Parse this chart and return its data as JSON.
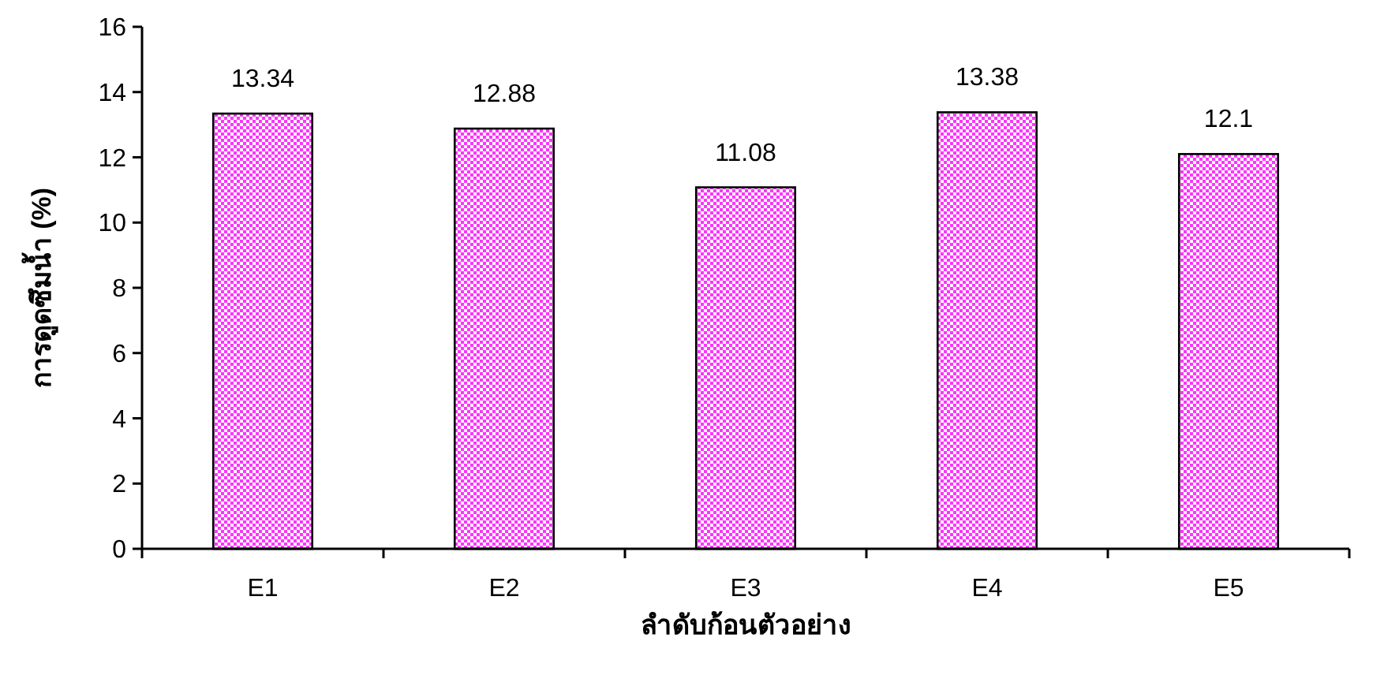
{
  "chart_data": {
    "type": "bar",
    "xlabel": "ลำดับก้อนตัวอย่าง",
    "ylabel": "การดูดซึมน้ำ (%)",
    "categories": [
      "E1",
      "E2",
      "E3",
      "E4",
      "E5"
    ],
    "values": [
      13.34,
      12.88,
      11.08,
      13.38,
      12.1
    ],
    "color": "#ff33ff",
    "ylim": [
      0,
      16
    ],
    "yticks": [
      0,
      2,
      4,
      6,
      8,
      10,
      12,
      14,
      16
    ],
    "data_labels": true,
    "grid": false
  }
}
